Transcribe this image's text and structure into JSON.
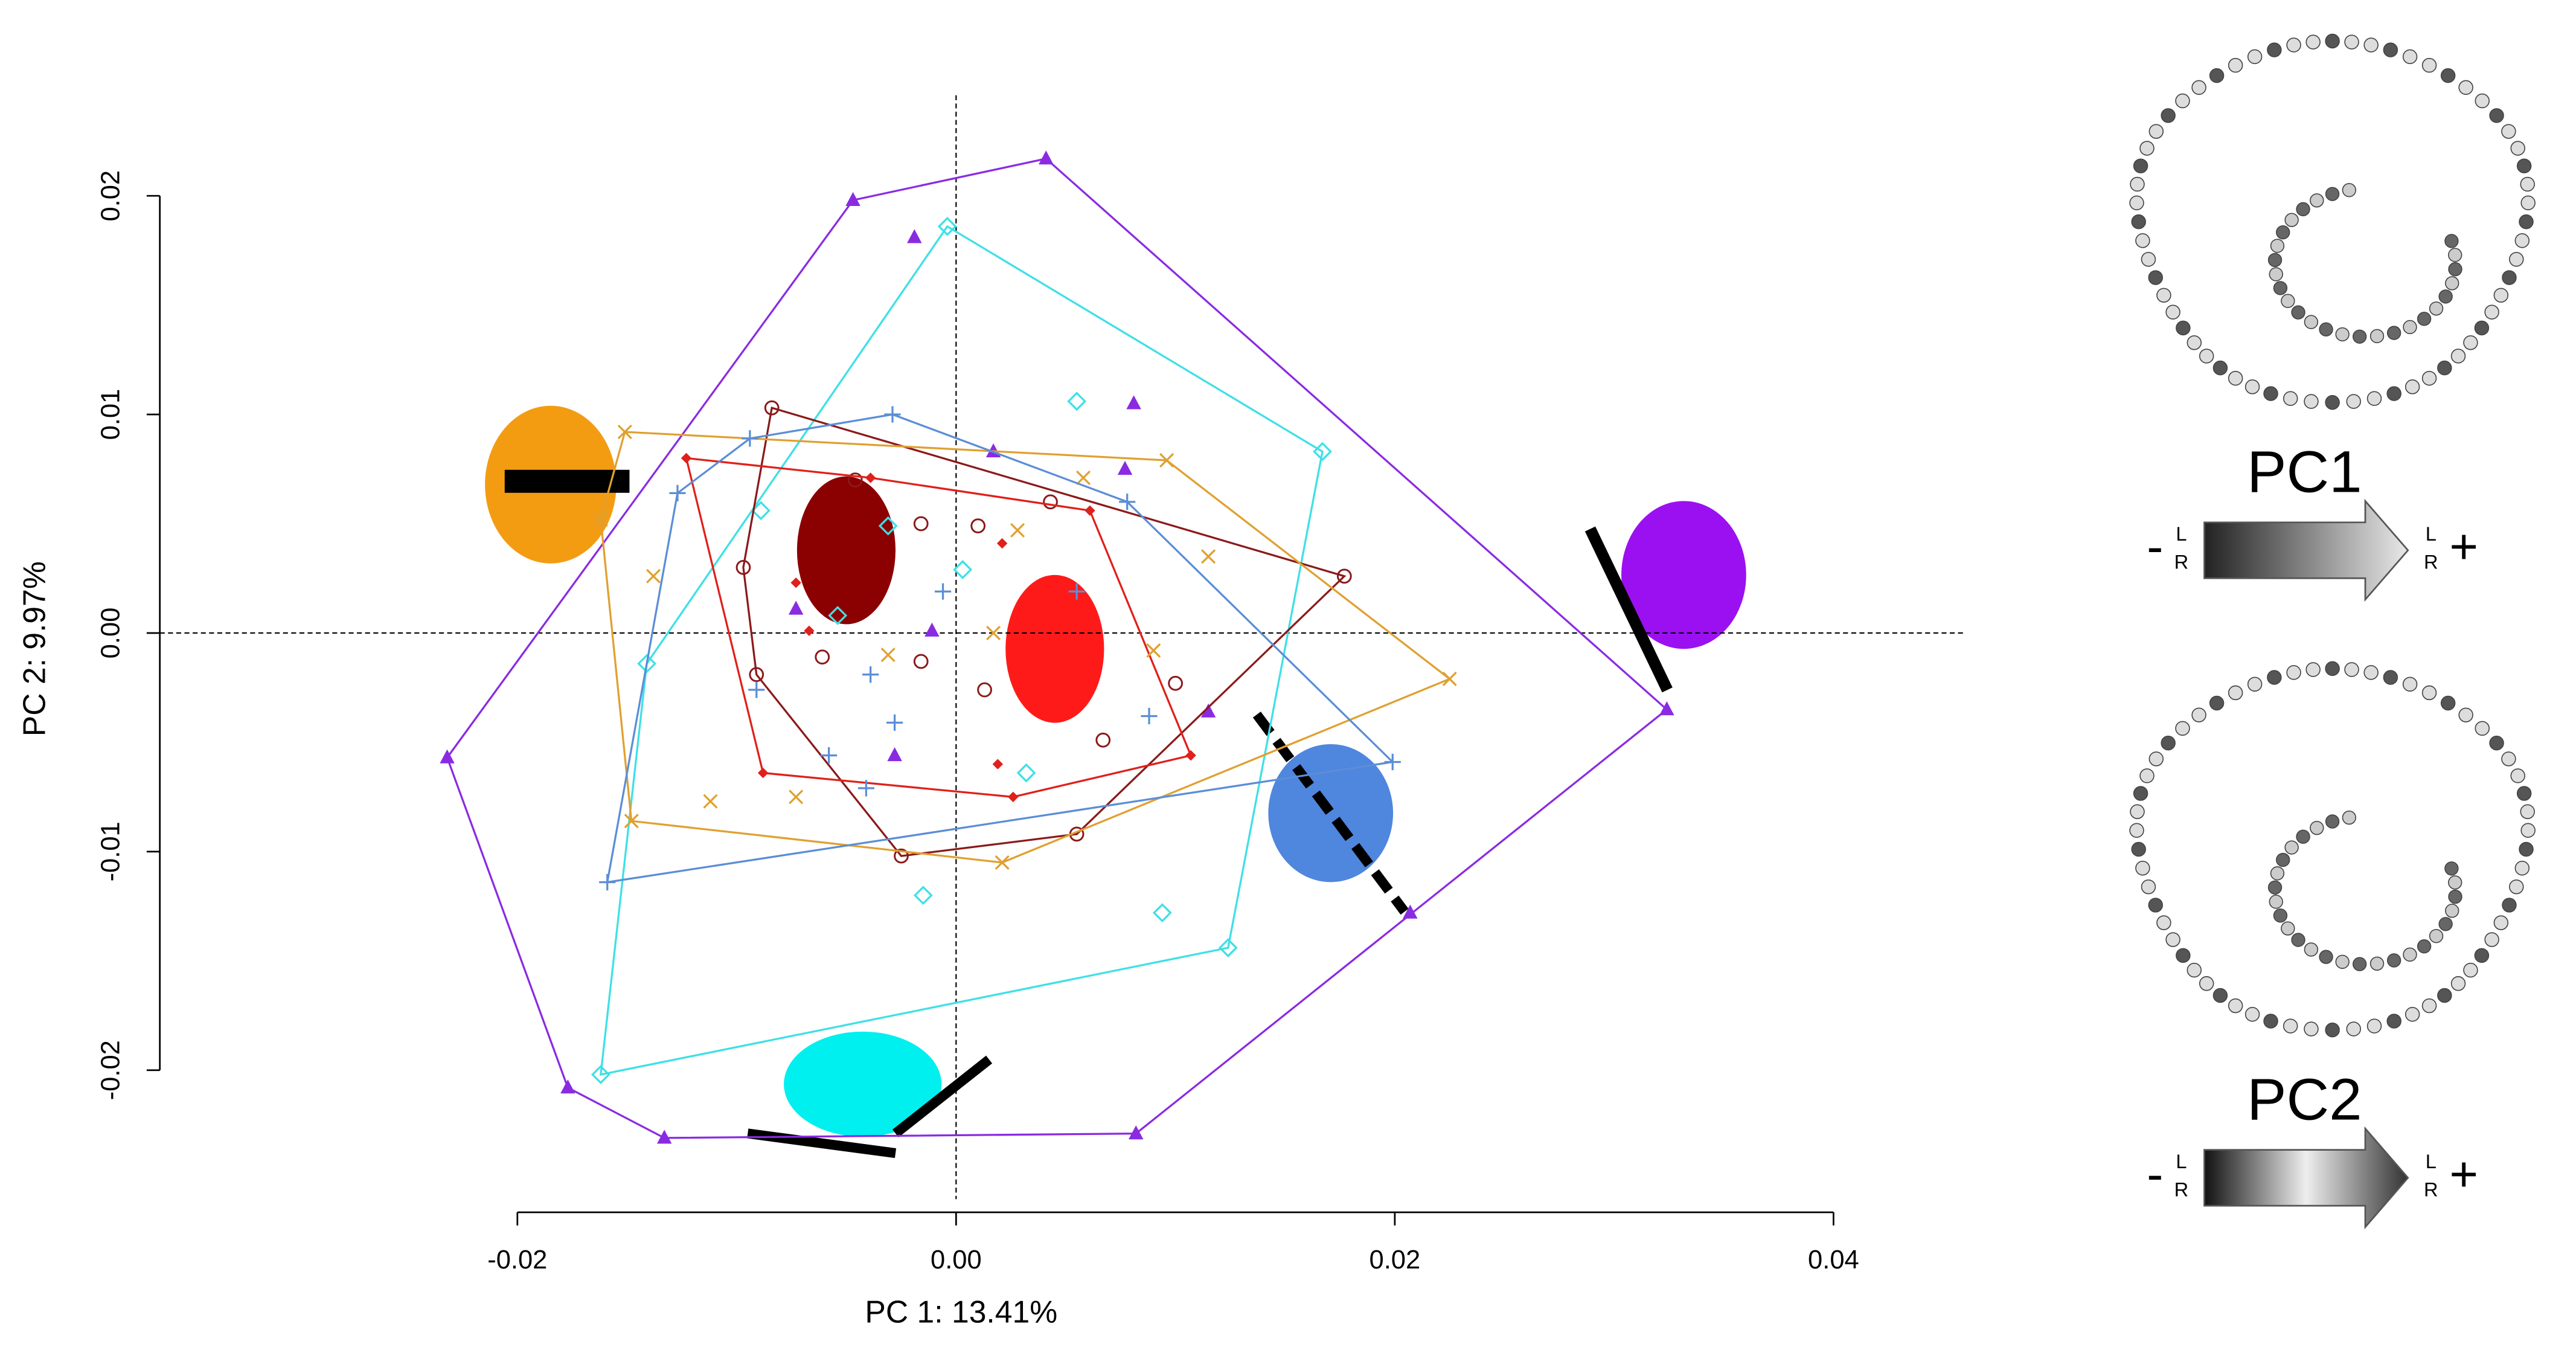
{
  "chart_data": {
    "type": "scatter",
    "xlabel": "PC 1: 13.41%",
    "ylabel": "PC 2: 9.97%",
    "xlim": [
      -0.0363,
      0.0459
    ],
    "ylim": [
      -0.0259,
      0.0246
    ],
    "xticks": [
      {
        "value": -0.02,
        "label": "-0.02"
      },
      {
        "value": 0,
        "label": "0.00"
      },
      {
        "value": 0.02,
        "label": "0.02"
      },
      {
        "value": 0.04,
        "label": "0.04"
      }
    ],
    "yticks": [
      {
        "value": -0.02,
        "label": "-0.02"
      },
      {
        "value": -0.01,
        "label": "-0.01"
      },
      {
        "value": 0,
        "label": "0.00"
      },
      {
        "value": 0.01,
        "label": "0.01"
      },
      {
        "value": 0.02,
        "label": "0.02"
      }
    ],
    "zero_lines": true,
    "convex_hulls": true,
    "series": [
      {
        "color": "#8a2be2",
        "marker": "triangle",
        "x": [
          -0.0047,
          0.0041,
          0.0324,
          0.0207,
          0.0082,
          -0.0133,
          -0.0177,
          -0.0232,
          -0.0019,
          0.0081,
          0.0077,
          0.0115,
          -0.0028,
          -0.0011,
          -0.0073,
          0.0017
        ],
        "values": [
          0.0198,
          0.0217,
          -0.0035,
          -0.0128,
          -0.0229,
          -0.0231,
          -0.0208,
          -0.0057,
          0.0181,
          0.0105,
          0.0075,
          -0.0036,
          -0.0056,
          0.0001,
          0.0011,
          0.0083
        ]
      },
      {
        "color": "#3ee0e6",
        "marker": "diamond",
        "x": [
          -0.0004,
          0.0167,
          0.0124,
          -0.0162,
          -0.0141,
          0.0055,
          -0.0089,
          -0.0054,
          0.0032,
          -0.0015,
          0.0094,
          -0.0031,
          0.0003
        ],
        "values": [
          0.0186,
          0.0083,
          -0.0144,
          -0.0202,
          -0.0014,
          0.0106,
          0.0056,
          0.0008,
          -0.0064,
          -0.012,
          -0.0128,
          0.0049,
          0.0029
        ]
      },
      {
        "color": "#8b1a1a",
        "marker": "circle",
        "x": [
          -0.0084,
          0.0177,
          0.0055,
          -0.0025,
          -0.0091,
          -0.0097,
          -0.0046,
          -0.0016,
          0.001,
          -0.0061,
          0.0043,
          0.0013,
          0.0067,
          0.01,
          -0.0016
        ],
        "values": [
          0.0103,
          0.0026,
          -0.0092,
          -0.0102,
          -0.0019,
          0.003,
          0.007,
          0.005,
          0.0049,
          -0.0011,
          0.006,
          -0.0026,
          -0.0049,
          -0.0023,
          -0.0013
        ]
      },
      {
        "color": "#e0201a",
        "marker": "diamond-filled",
        "x": [
          -0.0123,
          0.0061,
          0.0107,
          0.0026,
          -0.0088,
          -0.0073,
          -0.0067,
          0.0021,
          0.0019,
          -0.0039
        ],
        "values": [
          0.008,
          0.0056,
          -0.0056,
          -0.0075,
          -0.0064,
          0.0023,
          0.0001,
          0.0041,
          -0.006,
          0.0071
        ]
      },
      {
        "color": "#e0a030",
        "marker": "x",
        "x": [
          -0.0151,
          0.0096,
          0.0225,
          0.0021,
          -0.0148,
          -0.0162,
          -0.0138,
          -0.0112,
          -0.0073,
          -0.0031,
          0.0028,
          0.0115,
          0.0058,
          0.009,
          0.0017
        ],
        "values": [
          0.0092,
          0.0079,
          -0.0021,
          -0.0105,
          -0.0086,
          0.0052,
          0.0026,
          -0.0077,
          -0.0075,
          -0.001,
          0.0047,
          0.0035,
          0.0071,
          -0.0008,
          0
        ]
      },
      {
        "color": "#5b8ed6",
        "marker": "plus",
        "x": [
          -0.0029,
          0.0078,
          0.0199,
          -0.0159,
          -0.0127,
          -0.0094,
          -0.0041,
          -0.0006,
          -0.0039,
          0.0088,
          -0.0091,
          -0.0028,
          0.0055,
          -0.0058
        ],
        "values": [
          0.01,
          0.006,
          -0.0059,
          -0.0114,
          0.0064,
          0.0089,
          -0.0071,
          0.0019,
          -0.0019,
          -0.0038,
          -0.0026,
          -0.0041,
          0.0019,
          -0.0056
        ]
      }
    ]
  },
  "panels": [
    {
      "label": "PC1",
      "minus": "-",
      "plus": "+",
      "left_top": "L",
      "left_bottom": "R",
      "right_top": "L",
      "right_bottom": "R"
    },
    {
      "label": "PC2",
      "minus": "-",
      "plus": "+",
      "left_top": "L",
      "left_bottom": "R",
      "right_top": "L",
      "right_bottom": "R"
    }
  ]
}
